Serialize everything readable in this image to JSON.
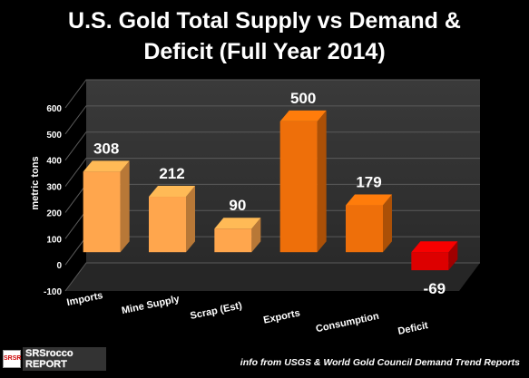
{
  "title_line1": "U.S. Gold Total Supply vs Demand &",
  "title_line2": "Deficit (Full Year 2014)",
  "source": "info from USGS & World Gold Council Demand Trend Reports",
  "logo": {
    "text_line1": "SRSrocco",
    "text_line2": "REPORT",
    "mark": "SRSR"
  },
  "chart_data": {
    "type": "bar",
    "title": "U.S. Gold Total Supply vs Demand & Deficit (Full Year 2014)",
    "ylabel": "metric tons",
    "xlabel": "",
    "ylim": [
      -100,
      600
    ],
    "yticks": [
      -100,
      0,
      100,
      200,
      300,
      400,
      500,
      600
    ],
    "grid": true,
    "categories": [
      "Imports",
      "Mine Supply",
      "Scrap (Est)",
      "Exports",
      "Consumption",
      "Deficit"
    ],
    "values": [
      308,
      212,
      90,
      500,
      179,
      -69
    ],
    "data_labels": [
      "308",
      "212",
      "90",
      "500",
      "179",
      "-69"
    ],
    "colors": {
      "supply": "#ffa64d",
      "demand": "#ee6f0a",
      "deficit": "#dd0000"
    },
    "bar_colors": [
      "supply",
      "supply",
      "supply",
      "demand",
      "demand",
      "deficit"
    ]
  }
}
